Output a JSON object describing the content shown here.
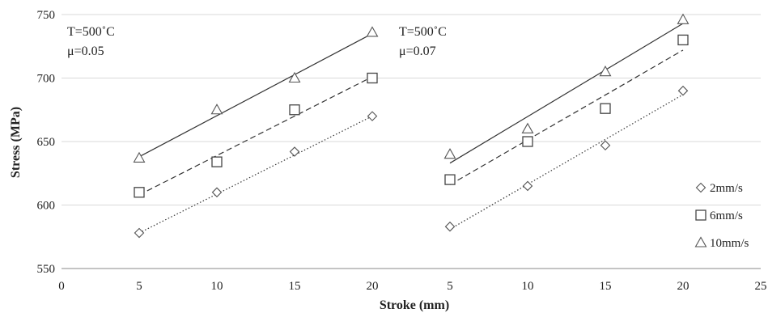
{
  "chart_data": {
    "type": "scatter",
    "xlabel": "Stroke (mm)",
    "ylabel": "Stress  (MPa)",
    "ylim": [
      550,
      750
    ],
    "yticks": [
      550,
      600,
      650,
      700,
      750
    ],
    "grid": "horizontal",
    "legend_position": "bottom-right",
    "legend": [
      {
        "label": "2mm/s",
        "marker": "diamond",
        "line": "dotted"
      },
      {
        "label": "6mm/s",
        "marker": "square",
        "line": "dashed"
      },
      {
        "label": "10mm/s",
        "marker": "triangle",
        "line": "solid"
      }
    ],
    "xtick_labels": [
      "0",
      "5",
      "10",
      "15",
      "20",
      "5",
      "10",
      "15",
      "20",
      "25"
    ],
    "panels": [
      {
        "annotation_lines": [
          "T=500˚C",
          "μ=0.05"
        ],
        "x": [
          5,
          10,
          15,
          20
        ],
        "series": [
          {
            "name": "2mm/s",
            "marker": "diamond",
            "line": "dotted",
            "values": [
              578,
              610,
              642,
              670
            ],
            "fit": [
              578,
              609,
              640,
              670
            ]
          },
          {
            "name": "6mm/s",
            "marker": "square",
            "line": "dashed",
            "values": [
              610,
              634,
              675,
              700
            ],
            "fit": [
              608,
              639,
              670,
              701
            ]
          },
          {
            "name": "10mm/s",
            "marker": "triangle",
            "line": "solid",
            "values": [
              637,
              675,
              700,
              736
            ],
            "fit": [
              638,
              670,
              703,
              735
            ]
          }
        ]
      },
      {
        "annotation_lines": [
          "T=500˚C",
          "μ=0.07"
        ],
        "x": [
          5,
          10,
          15,
          20
        ],
        "series": [
          {
            "name": "2mm/s",
            "marker": "diamond",
            "line": "dotted",
            "values": [
              583,
              615,
              647,
              690
            ],
            "fit": [
              581,
              616,
              651,
              687
            ]
          },
          {
            "name": "6mm/s",
            "marker": "square",
            "line": "dashed",
            "values": [
              620,
              650,
              676,
              730
            ],
            "fit": [
              616,
              652,
              687,
              722
            ]
          },
          {
            "name": "10mm/s",
            "marker": "triangle",
            "line": "solid",
            "values": [
              640,
              660,
              705,
              746
            ],
            "fit": [
              633,
              670,
              706,
              743
            ]
          }
        ]
      }
    ]
  }
}
